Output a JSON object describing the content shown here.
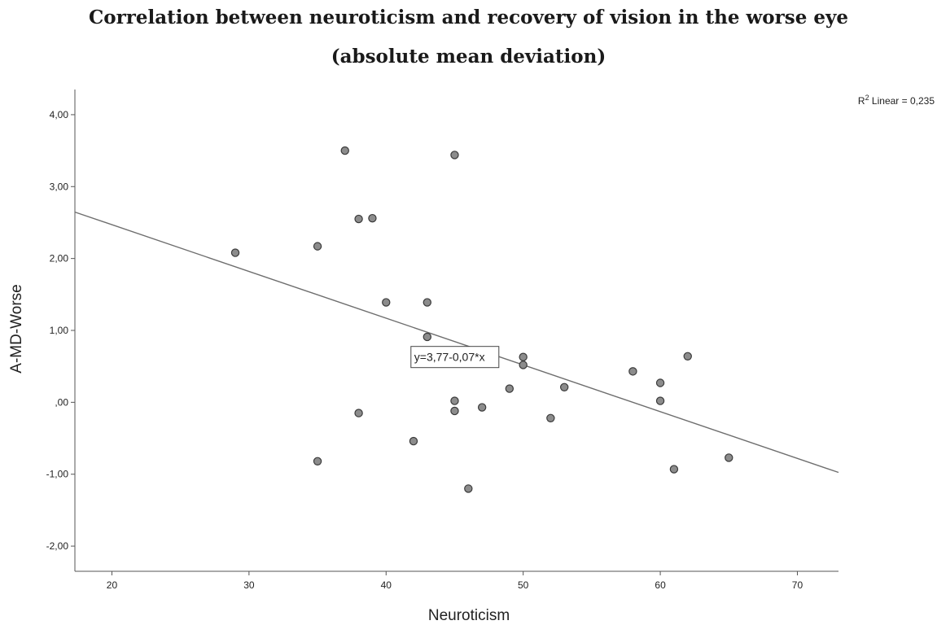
{
  "title": {
    "line1": "Correlation between neuroticism and recovery of vision in the worse eye",
    "line2": "(absolute mean deviation)"
  },
  "chart_data": {
    "type": "scatter",
    "title": "Correlation between neuroticism and recovery of vision in the worse eye (absolute mean deviation)",
    "xlabel": "Neuroticism",
    "ylabel": "A-MD-Worse",
    "xlim": [
      17.3,
      73.0
    ],
    "ylim": [
      -2.35,
      4.35
    ],
    "x_ticks": [
      20,
      30,
      40,
      50,
      60,
      70
    ],
    "x_tick_labels": [
      "20",
      "30",
      "40",
      "50",
      "60",
      "70"
    ],
    "y_ticks": [
      -2,
      -1,
      0,
      1,
      2,
      3,
      4
    ],
    "y_tick_labels": [
      "-2,00",
      "-1,00",
      ",00",
      "1,00",
      "2,00",
      "3,00",
      "4,00"
    ],
    "grid": false,
    "points": [
      {
        "x": 29,
        "y": 2.08
      },
      {
        "x": 35,
        "y": 2.17
      },
      {
        "x": 35,
        "y": -0.82
      },
      {
        "x": 37,
        "y": 3.5
      },
      {
        "x": 38,
        "y": 2.55
      },
      {
        "x": 38,
        "y": -0.15
      },
      {
        "x": 39,
        "y": 2.56
      },
      {
        "x": 40,
        "y": 1.39
      },
      {
        "x": 42,
        "y": -0.54
      },
      {
        "x": 43,
        "y": 1.39
      },
      {
        "x": 43,
        "y": 0.91
      },
      {
        "x": 45,
        "y": 3.44
      },
      {
        "x": 45,
        "y": 0.02
      },
      {
        "x": 45,
        "y": -0.12
      },
      {
        "x": 46,
        "y": -1.2
      },
      {
        "x": 47,
        "y": -0.07
      },
      {
        "x": 49,
        "y": 0.19
      },
      {
        "x": 50,
        "y": 0.63
      },
      {
        "x": 50,
        "y": 0.52
      },
      {
        "x": 52,
        "y": -0.22
      },
      {
        "x": 53,
        "y": 0.21
      },
      {
        "x": 58,
        "y": 0.43
      },
      {
        "x": 60,
        "y": 0.27
      },
      {
        "x": 60,
        "y": 0.02
      },
      {
        "x": 61,
        "y": -0.93
      },
      {
        "x": 62,
        "y": 0.64
      },
      {
        "x": 65,
        "y": -0.77
      }
    ],
    "fit_line": {
      "intercept": 3.77,
      "slope": -0.065,
      "x_range": [
        17.3,
        73.0
      ],
      "equation_label": "y=3,77-0,07*x",
      "equation_anchor": {
        "x": 43.0,
        "y": 0.63
      }
    },
    "r2_label": "Linear = 0,235",
    "r2_prefix": "R",
    "r2_superscript": "2",
    "colors": {
      "point_fill": "#8c8c8c",
      "point_stroke": "#3a3a3a",
      "line": "#6e6e6e",
      "axis": "#555555"
    }
  }
}
